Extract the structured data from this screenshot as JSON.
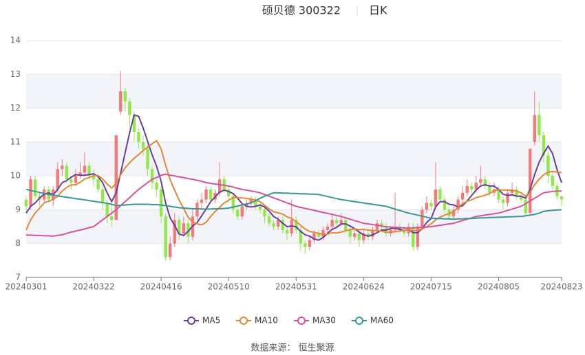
{
  "chart_data": {
    "type": "candlestick",
    "title": "硕贝德 300322",
    "subtitle": "日K",
    "source": "数据来源： 恒生聚源",
    "up_color": "#f47a7a",
    "down_color": "#90e84c",
    "grid": true,
    "ylim": [
      7,
      14
    ],
    "yticks": [
      7,
      8,
      9,
      10,
      11,
      12,
      13,
      14
    ],
    "categories": [
      "20240301",
      null,
      null,
      null,
      null,
      null,
      null,
      null,
      null,
      null,
      null,
      null,
      null,
      null,
      null,
      "20240322",
      null,
      null,
      null,
      null,
      null,
      null,
      null,
      null,
      null,
      null,
      null,
      null,
      null,
      null,
      "20240416",
      null,
      null,
      null,
      null,
      null,
      null,
      null,
      null,
      null,
      null,
      null,
      null,
      null,
      null,
      "20240510",
      null,
      null,
      null,
      null,
      null,
      null,
      null,
      null,
      null,
      null,
      null,
      null,
      null,
      null,
      "20240531",
      null,
      null,
      null,
      null,
      null,
      null,
      null,
      null,
      null,
      null,
      null,
      null,
      null,
      null,
      "20240624",
      null,
      null,
      null,
      null,
      null,
      null,
      null,
      null,
      null,
      null,
      null,
      null,
      null,
      null,
      "20240715",
      null,
      null,
      null,
      null,
      null,
      null,
      null,
      null,
      null,
      null,
      null,
      null,
      null,
      null,
      "20240805",
      null,
      null,
      null,
      null,
      null,
      null,
      null,
      null,
      null,
      null,
      null,
      null,
      null,
      "20240823"
    ],
    "ohlc": [
      [
        9.3,
        9.1,
        8.9,
        9.4
      ],
      [
        9.1,
        9.9,
        9.0,
        10.0
      ],
      [
        9.9,
        9.4,
        9.3,
        10.0
      ],
      [
        9.4,
        9.3,
        9.1,
        9.5
      ],
      [
        9.3,
        9.6,
        9.2,
        9.7
      ],
      [
        9.6,
        9.3,
        9.2,
        9.7
      ],
      [
        9.3,
        9.6,
        9.1,
        9.7
      ],
      [
        9.6,
        10.2,
        9.5,
        10.4
      ],
      [
        10.2,
        10.3,
        10.0,
        10.5
      ],
      [
        10.3,
        9.9,
        9.8,
        10.4
      ],
      [
        9.9,
        9.8,
        9.6,
        10.0
      ],
      [
        9.8,
        10.0,
        9.7,
        10.2
      ],
      [
        10.0,
        10.1,
        9.9,
        10.4
      ],
      [
        10.1,
        10.3,
        10.0,
        10.7
      ],
      [
        10.3,
        10.0,
        9.9,
        10.4
      ],
      [
        10.0,
        9.9,
        9.7,
        10.2
      ],
      [
        9.9,
        9.6,
        9.5,
        10.0
      ],
      [
        9.6,
        9.2,
        9.0,
        9.7
      ],
      [
        9.2,
        8.8,
        8.6,
        9.3
      ],
      [
        8.8,
        8.7,
        8.5,
        9.2
      ],
      [
        8.7,
        11.2,
        8.7,
        11.2
      ],
      [
        11.9,
        12.5,
        11.8,
        13.1
      ],
      [
        12.5,
        12.2,
        11.9,
        12.6
      ],
      [
        12.2,
        11.8,
        11.4,
        12.3
      ],
      [
        11.8,
        11.3,
        11.0,
        11.9
      ],
      [
        11.3,
        11.0,
        10.8,
        11.4
      ],
      [
        11.0,
        10.8,
        10.6,
        11.2
      ],
      [
        10.8,
        10.2,
        10.0,
        10.9
      ],
      [
        10.2,
        9.8,
        9.6,
        10.3
      ],
      [
        9.8,
        9.6,
        9.4,
        9.9
      ],
      [
        9.6,
        8.8,
        8.6,
        9.7
      ],
      [
        8.8,
        7.6,
        7.5,
        8.9
      ],
      [
        7.6,
        8.0,
        7.5,
        8.2
      ],
      [
        8.0,
        8.7,
        7.9,
        8.9
      ],
      [
        8.7,
        8.3,
        8.1,
        8.8
      ],
      [
        8.3,
        8.6,
        8.2,
        8.8
      ],
      [
        8.6,
        8.2,
        8.0,
        8.7
      ],
      [
        8.2,
        8.8,
        8.1,
        9.0
      ],
      [
        8.8,
        9.2,
        8.7,
        9.3
      ],
      [
        9.2,
        9.3,
        9.0,
        9.5
      ],
      [
        9.3,
        9.6,
        9.2,
        9.7
      ],
      [
        9.6,
        9.3,
        9.2,
        9.7
      ],
      [
        9.3,
        9.5,
        9.2,
        9.6
      ],
      [
        9.5,
        9.9,
        9.4,
        10.4
      ],
      [
        9.9,
        9.6,
        9.5,
        10.0
      ],
      [
        9.6,
        9.4,
        9.2,
        9.7
      ],
      [
        9.4,
        9.0,
        8.9,
        9.5
      ],
      [
        9.0,
        8.8,
        8.7,
        9.1
      ],
      [
        8.8,
        9.1,
        8.7,
        9.2
      ],
      [
        9.1,
        9.2,
        9.0,
        9.3
      ],
      [
        9.2,
        9.3,
        9.1,
        9.4
      ],
      [
        9.3,
        9.1,
        9.0,
        9.4
      ],
      [
        9.1,
        9.0,
        8.9,
        9.2
      ],
      [
        9.0,
        8.8,
        8.6,
        9.1
      ],
      [
        8.8,
        8.6,
        8.5,
        8.9
      ],
      [
        8.6,
        8.5,
        8.4,
        8.7
      ],
      [
        8.5,
        8.7,
        8.4,
        8.8
      ],
      [
        8.7,
        8.4,
        8.3,
        8.8
      ],
      [
        8.4,
        8.3,
        8.1,
        8.5
      ],
      [
        8.3,
        8.7,
        8.2,
        9.3
      ],
      [
        8.7,
        8.4,
        8.3,
        8.8
      ],
      [
        8.4,
        8.0,
        7.8,
        8.5
      ],
      [
        8.0,
        7.9,
        7.7,
        8.1
      ],
      [
        7.9,
        8.1,
        7.8,
        8.2
      ],
      [
        8.1,
        8.3,
        8.0,
        8.4
      ],
      [
        8.3,
        8.2,
        8.1,
        8.4
      ],
      [
        8.2,
        8.4,
        8.1,
        8.5
      ],
      [
        8.4,
        8.5,
        8.3,
        8.6
      ],
      [
        8.5,
        8.7,
        8.4,
        8.9
      ],
      [
        8.7,
        8.6,
        8.5,
        8.8
      ],
      [
        8.6,
        8.7,
        8.5,
        8.9
      ],
      [
        8.7,
        8.4,
        8.3,
        8.8
      ],
      [
        8.4,
        8.2,
        8.0,
        8.5
      ],
      [
        8.2,
        8.3,
        8.1,
        8.4
      ],
      [
        8.3,
        8.1,
        7.9,
        8.4
      ],
      [
        8.1,
        8.3,
        8.0,
        8.4
      ],
      [
        8.3,
        8.2,
        8.1,
        8.4
      ],
      [
        8.2,
        8.4,
        8.1,
        8.5
      ],
      [
        8.4,
        8.6,
        8.3,
        8.7
      ],
      [
        8.6,
        8.5,
        8.4,
        8.7
      ],
      [
        8.5,
        8.3,
        8.2,
        8.6
      ],
      [
        8.3,
        8.4,
        8.2,
        8.5
      ],
      [
        8.4,
        8.5,
        8.3,
        9.5
      ],
      [
        8.5,
        8.4,
        8.3,
        8.6
      ],
      [
        8.4,
        8.3,
        8.2,
        8.5
      ],
      [
        8.3,
        8.5,
        8.2,
        8.6
      ],
      [
        8.5,
        7.9,
        7.8,
        8.6
      ],
      [
        7.9,
        8.5,
        7.8,
        8.6
      ],
      [
        8.5,
        9.0,
        8.4,
        9.1
      ],
      [
        9.0,
        9.2,
        8.9,
        9.4
      ],
      [
        9.2,
        9.1,
        9.0,
        9.3
      ],
      [
        9.1,
        9.6,
        9.0,
        10.4
      ],
      [
        9.6,
        9.3,
        9.2,
        9.7
      ],
      [
        9.3,
        9.0,
        8.9,
        9.4
      ],
      [
        9.0,
        8.8,
        8.7,
        9.1
      ],
      [
        8.8,
        9.0,
        8.7,
        9.1
      ],
      [
        9.0,
        9.3,
        8.9,
        9.4
      ],
      [
        9.3,
        9.5,
        9.2,
        9.7
      ],
      [
        9.5,
        9.7,
        9.4,
        9.9
      ],
      [
        9.7,
        9.6,
        9.5,
        9.8
      ],
      [
        9.6,
        9.8,
        9.5,
        10.0
      ],
      [
        9.8,
        9.9,
        9.7,
        10.3
      ],
      [
        9.9,
        9.7,
        9.6,
        10.0
      ],
      [
        9.7,
        9.5,
        9.4,
        9.8
      ],
      [
        9.5,
        9.6,
        9.4,
        9.8
      ],
      [
        9.6,
        9.3,
        9.2,
        9.7
      ],
      [
        9.3,
        9.2,
        9.0,
        9.4
      ],
      [
        9.2,
        9.5,
        9.1,
        9.6
      ],
      [
        9.5,
        9.6,
        9.4,
        9.8
      ],
      [
        9.6,
        9.4,
        9.3,
        9.7
      ],
      [
        9.4,
        9.3,
        9.2,
        9.5
      ],
      [
        9.3,
        8.9,
        8.8,
        9.4
      ],
      [
        8.9,
        10.8,
        8.9,
        10.8
      ],
      [
        11.0,
        11.8,
        10.9,
        12.5
      ],
      [
        11.8,
        11.2,
        11.0,
        12.2
      ],
      [
        11.2,
        10.6,
        10.4,
        11.3
      ],
      [
        10.6,
        10.0,
        9.8,
        10.7
      ],
      [
        10.0,
        9.7,
        9.6,
        10.1
      ],
      [
        9.7,
        9.4,
        9.3,
        9.8
      ],
      [
        9.4,
        9.3,
        9.1,
        9.4
      ]
    ],
    "series": [
      {
        "name": "MA5",
        "color": "#6a3d9a",
        "values": [
          8.9,
          9.1,
          9.2,
          9.35,
          9.46,
          9.5,
          9.44,
          9.6,
          9.8,
          9.86,
          9.96,
          10.04,
          10.02,
          10.02,
          10.04,
          10.06,
          9.98,
          9.8,
          9.5,
          9.24,
          9.5,
          10.08,
          10.68,
          11.28,
          11.8,
          11.76,
          11.42,
          11.02,
          10.62,
          10.28,
          9.84,
          9.2,
          8.76,
          8.54,
          8.28,
          8.24,
          8.36,
          8.52,
          8.62,
          8.82,
          9.02,
          9.24,
          9.38,
          9.52,
          9.58,
          9.54,
          9.48,
          9.34,
          9.18,
          9.1,
          9.08,
          9.1,
          9.14,
          9.08,
          8.96,
          8.8,
          8.72,
          8.6,
          8.5,
          8.52,
          8.5,
          8.36,
          8.26,
          8.22,
          8.14,
          8.1,
          8.18,
          8.3,
          8.42,
          8.48,
          8.58,
          8.58,
          8.52,
          8.44,
          8.34,
          8.26,
          8.22,
          8.26,
          8.32,
          8.4,
          8.4,
          8.44,
          8.46,
          8.42,
          8.38,
          8.42,
          8.32,
          8.32,
          8.44,
          8.62,
          8.74,
          9.08,
          9.24,
          9.24,
          9.16,
          9.14,
          9.08,
          9.12,
          9.26,
          9.42,
          9.58,
          9.7,
          9.74,
          9.7,
          9.7,
          9.6,
          9.46,
          9.42,
          9.44,
          9.4,
          9.4,
          9.34,
          9.6,
          10.04,
          10.4,
          10.66,
          10.88,
          10.66,
          10.18,
          9.8
        ]
      },
      {
        "name": "MA10",
        "color": "#e0883a",
        "values": [
          8.4,
          8.7,
          8.9,
          9.05,
          9.2,
          9.25,
          9.3,
          9.4,
          9.55,
          9.66,
          9.73,
          9.74,
          9.81,
          9.91,
          9.95,
          10.01,
          10.01,
          9.91,
          9.76,
          9.64,
          9.78,
          10.03,
          10.24,
          10.39,
          10.52,
          10.63,
          10.75,
          10.85,
          10.95,
          11.04,
          10.8,
          10.31,
          9.89,
          9.58,
          9.28,
          9.04,
          8.78,
          8.64,
          8.58,
          8.55,
          8.63,
          8.8,
          8.95,
          9.07,
          9.2,
          9.28,
          9.36,
          9.36,
          9.35,
          9.34,
          9.31,
          9.29,
          9.24,
          9.13,
          9.03,
          8.94,
          8.91,
          8.87,
          8.79,
          8.74,
          8.65,
          8.54,
          8.43,
          8.36,
          8.33,
          8.3,
          8.27,
          8.28,
          8.32,
          8.31,
          8.34,
          8.38,
          8.41,
          8.43,
          8.41,
          8.42,
          8.4,
          8.39,
          8.38,
          8.37,
          8.33,
          8.33,
          8.36,
          8.37,
          8.39,
          8.41,
          8.38,
          8.39,
          8.43,
          8.5,
          8.58,
          8.7,
          8.78,
          8.84,
          8.89,
          8.94,
          9.08,
          9.18,
          9.25,
          9.29,
          9.36,
          9.39,
          9.43,
          9.48,
          9.56,
          9.59,
          9.58,
          9.58,
          9.57,
          9.55,
          9.5,
          9.4,
          9.51,
          9.74,
          9.9,
          10.03,
          10.11,
          10.13,
          10.11,
          10.1
        ]
      },
      {
        "name": "MA30",
        "color": "#d4529c",
        "values": [
          8.25,
          8.25,
          8.24,
          8.24,
          8.23,
          8.23,
          8.22,
          8.24,
          8.26,
          8.3,
          8.34,
          8.37,
          8.4,
          8.43,
          8.47,
          8.5,
          8.6,
          8.7,
          8.8,
          8.9,
          9.0,
          9.12,
          9.24,
          9.36,
          9.48,
          9.6,
          9.7,
          9.8,
          9.9,
          9.95,
          10.02,
          10.05,
          10.02,
          10.0,
          9.97,
          9.95,
          9.92,
          9.9,
          9.87,
          9.84,
          9.8,
          9.78,
          9.76,
          9.74,
          9.72,
          9.7,
          9.67,
          9.63,
          9.6,
          9.58,
          9.55,
          9.53,
          9.5,
          9.45,
          9.4,
          9.35,
          9.3,
          9.25,
          9.2,
          9.15,
          9.1,
          9.07,
          9.04,
          9.01,
          8.98,
          8.95,
          8.92,
          8.89,
          8.86,
          8.83,
          8.8,
          8.76,
          8.72,
          8.68,
          8.64,
          8.6,
          8.58,
          8.56,
          8.54,
          8.52,
          8.5,
          8.49,
          8.48,
          8.47,
          8.46,
          8.45,
          8.46,
          8.47,
          8.48,
          8.49,
          8.5,
          8.52,
          8.54,
          8.56,
          8.58,
          8.6,
          8.64,
          8.68,
          8.72,
          8.76,
          8.8,
          8.82,
          8.84,
          8.86,
          8.88,
          8.9,
          8.94,
          8.98,
          9.02,
          9.06,
          9.1,
          9.18,
          9.26,
          9.34,
          9.42,
          9.5,
          9.52,
          9.54,
          9.55,
          9.55
        ]
      },
      {
        "name": "MA60",
        "color": "#3a9693",
        "values": [
          9.6,
          9.57,
          9.54,
          9.51,
          9.48,
          9.45,
          9.43,
          9.41,
          9.39,
          9.37,
          9.35,
          9.33,
          9.31,
          9.29,
          9.27,
          9.25,
          9.23,
          9.21,
          9.19,
          9.16,
          9.12,
          9.13,
          9.14,
          9.15,
          9.16,
          9.16,
          9.16,
          9.16,
          9.15,
          9.15,
          9.14,
          9.12,
          9.1,
          9.08,
          9.06,
          9.05,
          9.04,
          9.03,
          9.03,
          9.02,
          9.02,
          9.02,
          9.03,
          9.03,
          9.04,
          9.05,
          9.08,
          9.11,
          9.14,
          9.17,
          9.2,
          9.27,
          9.34,
          9.4,
          9.45,
          9.5,
          9.5,
          9.49,
          9.49,
          9.48,
          9.48,
          9.47,
          9.47,
          9.46,
          9.46,
          9.45,
          9.42,
          9.39,
          9.36,
          9.33,
          9.3,
          9.28,
          9.26,
          9.24,
          9.22,
          9.2,
          9.18,
          9.16,
          9.14,
          9.12,
          9.1,
          9.06,
          9.02,
          8.98,
          8.94,
          8.9,
          8.87,
          8.84,
          8.81,
          8.78,
          8.75,
          8.74,
          8.74,
          8.73,
          8.73,
          8.72,
          8.73,
          8.73,
          8.74,
          8.74,
          8.75,
          8.76,
          8.76,
          8.77,
          8.77,
          8.78,
          8.78,
          8.79,
          8.79,
          8.8,
          8.8,
          8.82,
          8.84,
          8.86,
          8.9,
          8.95,
          8.97,
          8.98,
          8.99,
          9.0
        ]
      }
    ]
  }
}
